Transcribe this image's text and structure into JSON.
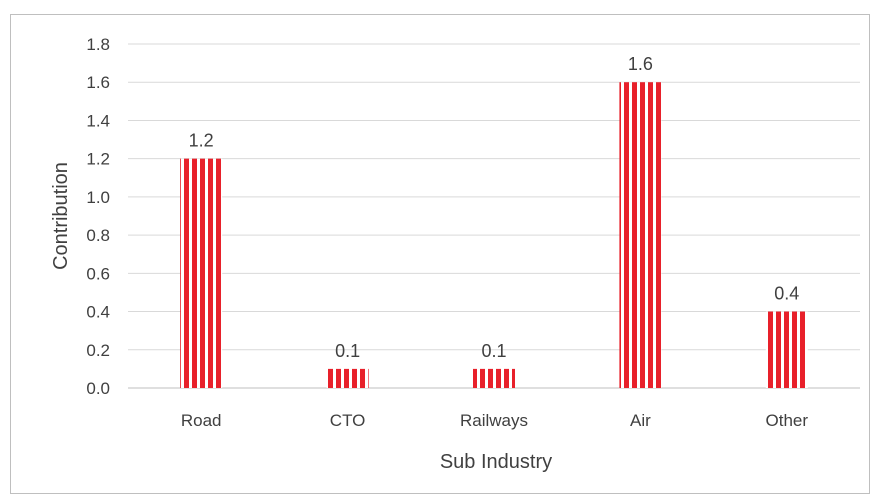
{
  "chart_data": {
    "type": "bar",
    "categories": [
      "Road",
      "CTO",
      "Railways",
      "Air",
      "Other"
    ],
    "values": [
      1.2,
      0.1,
      0.1,
      1.6,
      0.4
    ],
    "data_labels": [
      "1.2",
      "0.1",
      "0.1",
      "1.6",
      "0.4"
    ],
    "title": "",
    "xlabel": "Sub Industry",
    "ylabel": "Contribution",
    "ylim": [
      0,
      1.8
    ],
    "yticks": [
      "0.0",
      "0.2",
      "0.4",
      "0.6",
      "0.8",
      "1.0",
      "1.2",
      "1.4",
      "1.6",
      "1.8"
    ],
    "grid": true,
    "legend": "none",
    "bar_color": "#e8202a",
    "bar_pattern": "vertical-stripes"
  }
}
